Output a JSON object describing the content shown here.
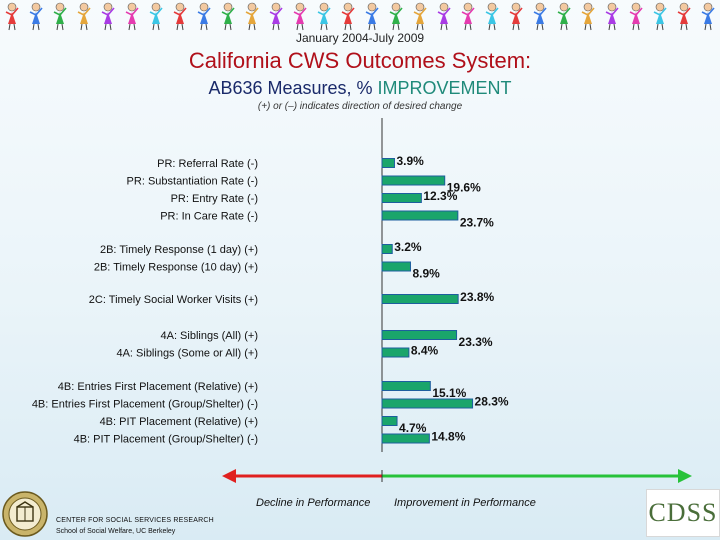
{
  "header": {
    "date_range": "January 2004-July 2009",
    "title": "California CWS Outcomes System:",
    "subtitle_main": "AB636 Measures,  % ",
    "subtitle_accent": "IMPROVEMENT",
    "note": "(+) or (–) indicates direction of desired change"
  },
  "chart_data": {
    "type": "bar",
    "orientation": "horizontal",
    "bar_color": "#1aa56b",
    "bar_border_color": "#1d5e9e",
    "categories": [
      "PR: Referral Rate (-)",
      "PR: Substantiation Rate (-)",
      "PR: Entry Rate (-)",
      "PR: In Care Rate (-)",
      "2B: Timely Response (1 day) (+)",
      "2B: Timely Response (10 day) (+)",
      "2C: Timely Social Worker Visits (+)",
      "4A: Siblings (All) (+)",
      "4A: Siblings (Some or All) (+)",
      "4B: Entries First Placement (Relative) (+)",
      "4B: Entries First Placement (Group/Shelter) (-)",
      "4B: PIT Placement (Relative) (+)",
      "4B: PIT Placement (Group/Shelter) (-)"
    ],
    "values": [
      3.9,
      19.6,
      12.3,
      23.7,
      3.2,
      8.9,
      23.8,
      23.3,
      8.4,
      15.1,
      28.3,
      4.7,
      14.8
    ],
    "value_labels": [
      "3.9%",
      "19.6%",
      "12.3%",
      "23.7%",
      "3.2%",
      "8.9%",
      "23.8%",
      "23.3%",
      "8.4%",
      "15.1%",
      "28.3%",
      "4.7%",
      "14.8%"
    ],
    "groups": [
      [
        0,
        1,
        2,
        3
      ],
      [
        4,
        5
      ],
      [
        6
      ],
      [
        7,
        8
      ],
      [
        9,
        10,
        11,
        12
      ]
    ],
    "xlim": [
      -30,
      30
    ],
    "left_direction_label": "Decline in Performance",
    "right_direction_label": "Improvement in Performance",
    "decline_color": "#e0201f",
    "improve_color": "#27c23a"
  },
  "footer": {
    "org_name": "CENTER FOR SOCIAL SERVICES RESEARCH",
    "org_sub": "School of Social Welfare, UC Berkeley",
    "cdss_logo": "CDSS"
  }
}
